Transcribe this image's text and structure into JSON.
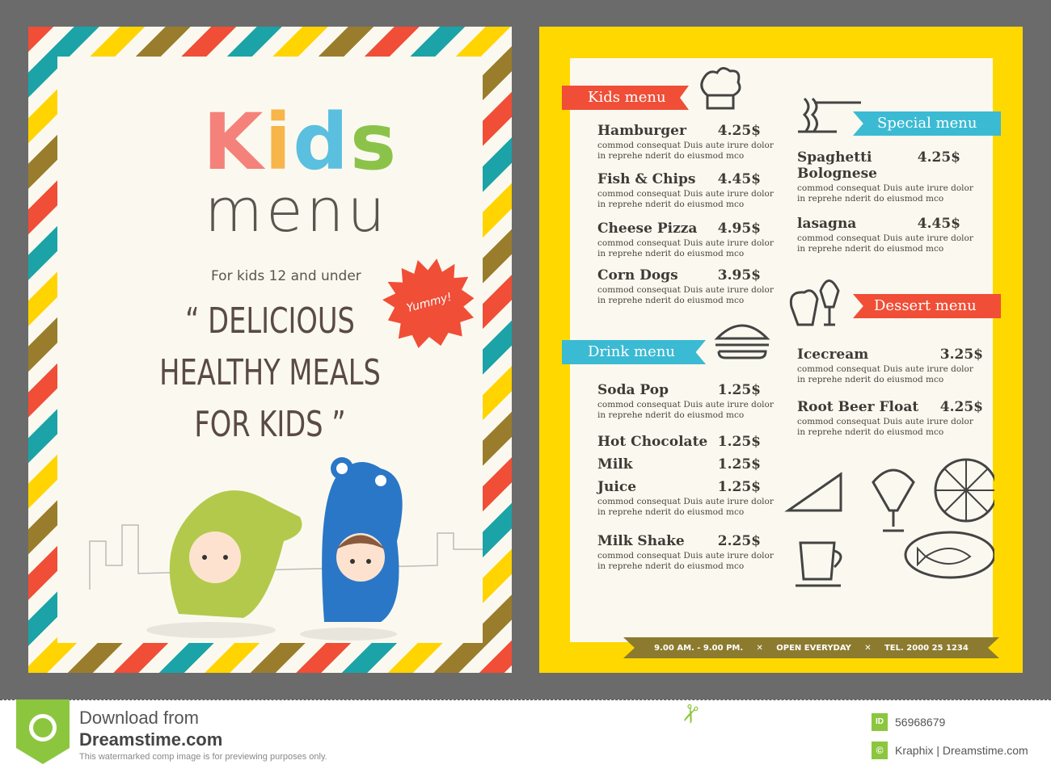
{
  "left_card": {
    "title_word1": "Kids",
    "title_letters": [
      "K",
      "i",
      "d",
      "s"
    ],
    "title_colors": [
      "#f4827a",
      "#f7b54a",
      "#5bbfe0",
      "#8bc34a"
    ],
    "title_word2": "menu",
    "subtitle": "For kids 12 and under",
    "quote": [
      "“ DELICIOUS",
      "HEALTHY MEALS",
      "FOR KIDS ”"
    ],
    "badge": "Yummy!"
  },
  "right_card": {
    "kids_menu": {
      "label": "Kids menu",
      "items": [
        {
          "name": "Hamburger",
          "price": "4.25$",
          "desc1": "commod consequat Duis aute irure dolor",
          "desc2": "in reprehe nderit do eiusmod mco"
        },
        {
          "name": "Fish & Chips",
          "price": "4.45$",
          "desc1": "commod consequat Duis aute irure dolor",
          "desc2": "in reprehe nderit do eiusmod mco"
        },
        {
          "name": "Cheese Pizza",
          "price": "4.95$",
          "desc1": "commod consequat Duis aute irure dolor",
          "desc2": "in reprehe nderit do eiusmod mco"
        },
        {
          "name": "Corn Dogs",
          "price": "3.95$",
          "desc1": "commod consequat Duis aute irure dolor",
          "desc2": "in reprehe nderit do eiusmod mco"
        }
      ]
    },
    "drink_menu": {
      "label": "Drink menu",
      "items": [
        {
          "name": "Soda Pop",
          "price": "1.25$",
          "desc1": "commod consequat Duis aute irure dolor",
          "desc2": "in reprehe nderit do eiusmod mco"
        },
        {
          "name": "Hot Chocolate",
          "price": "1.25$"
        },
        {
          "name": "Milk",
          "price": "1.25$"
        },
        {
          "name": "Juice",
          "price": "1.25$",
          "desc1": "commod consequat Duis aute irure dolor",
          "desc2": "in reprehe nderit do eiusmod mco"
        },
        {
          "name": "Milk Shake",
          "price": "2.25$",
          "desc1": "commod consequat Duis aute irure dolor",
          "desc2": "in reprehe nderit do eiusmod mco"
        }
      ]
    },
    "special_menu": {
      "label": "Special menu",
      "items": [
        {
          "name": "Spaghetti",
          "name2": "Bolognese",
          "price": "4.25$",
          "desc1": "commod consequat Duis aute irure dolor",
          "desc2": "in reprehe nderit do eiusmod mco"
        },
        {
          "name": "lasagna",
          "price": "4.45$",
          "desc1": "commod consequat Duis aute irure dolor",
          "desc2": "in reprehe nderit do eiusmod mco"
        }
      ]
    },
    "dessert_menu": {
      "label": "Dessert menu",
      "items": [
        {
          "name": "Icecream",
          "price": "3.25$",
          "desc1": "commod consequat Duis aute irure dolor",
          "desc2": "in reprehe nderit do eiusmod mco"
        },
        {
          "name": "Root Beer Float",
          "price": "4.25$",
          "desc1": "commod consequat Duis aute irure dolor",
          "desc2": "in reprehe nderit do eiusmod mco"
        }
      ]
    },
    "info_bar": {
      "hours": "9.00 AM. - 9.00 PM.",
      "open": "OPEN EVERYDAY",
      "tel": "TEL. 2000 25 1234"
    }
  },
  "footer": {
    "download": "Download from",
    "site": "Dreamstime.com",
    "notice": "This watermarked comp image is for previewing purposes only.",
    "id_badge": "ID",
    "id": "56968679",
    "credit": "Kraphix | Dreamstime.com"
  },
  "colors": {
    "red": "#f04e37",
    "teal": "#3bbad3",
    "yellow": "#ffd800",
    "olive": "#8c7a2f",
    "cream": "#fbf9ef",
    "green": "#8cc63f"
  }
}
